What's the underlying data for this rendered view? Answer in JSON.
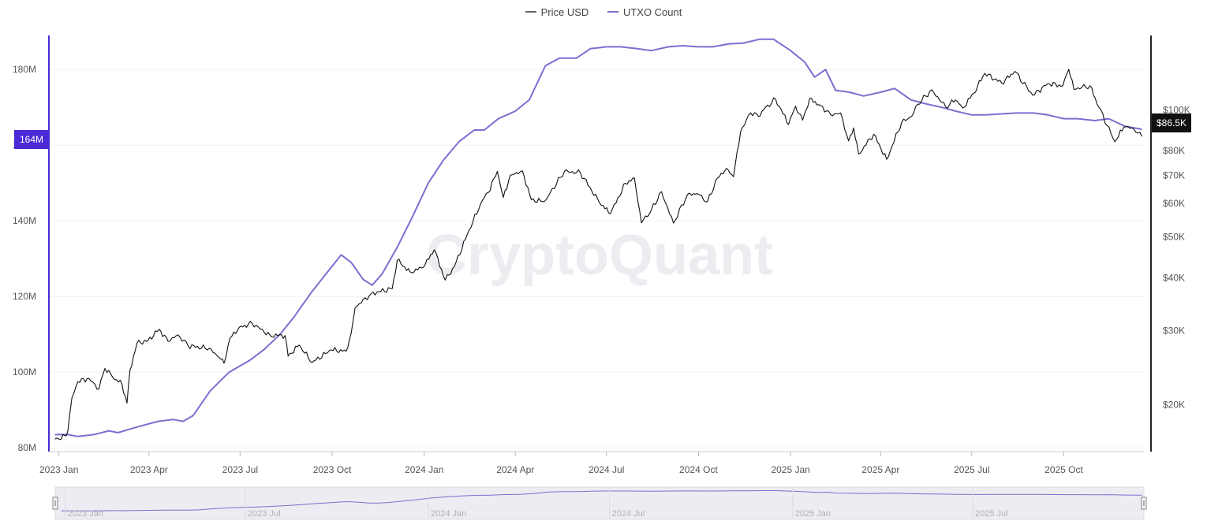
{
  "legend": [
    {
      "label": "Price USD",
      "color": "#666666"
    },
    {
      "label": "UTXO Count",
      "color": "#7b6fd0"
    }
  ],
  "watermark": "CryptoQuant",
  "crosshair": {
    "left_value": "164M",
    "right_value": "$86.5K"
  },
  "colors": {
    "price": "#111111",
    "utxo": "#7b6fd0",
    "accent": "#4b2ad6",
    "navigator": "#ececf2"
  },
  "chart_data": {
    "type": "line",
    "x_range": [
      "2022-12-22",
      "2025-12-20"
    ],
    "x_ticks": [
      {
        "date": "2023-01-01",
        "label": "2023 Jan"
      },
      {
        "date": "2023-04-01",
        "label": "2023 Apr"
      },
      {
        "date": "2023-07-01",
        "label": "2023 Jul"
      },
      {
        "date": "2023-10-01",
        "label": "2023 Oct"
      },
      {
        "date": "2024-01-01",
        "label": "2024 Jan"
      },
      {
        "date": "2024-04-01",
        "label": "2024 Apr"
      },
      {
        "date": "2024-07-01",
        "label": "2024 Jul"
      },
      {
        "date": "2024-10-01",
        "label": "2024 Oct"
      },
      {
        "date": "2025-01-01",
        "label": "2025 Jan"
      },
      {
        "date": "2025-04-01",
        "label": "2025 Apr"
      },
      {
        "date": "2025-07-01",
        "label": "2025 Jul"
      },
      {
        "date": "2025-10-01",
        "label": "2025 Oct"
      }
    ],
    "y_left": {
      "label": "",
      "ylim": [
        79,
        189
      ],
      "ticks": [
        {
          "v": 80,
          "label": "80M"
        },
        {
          "v": 100,
          "label": "100M"
        },
        {
          "v": 120,
          "label": "120M"
        },
        {
          "v": 140,
          "label": "140M"
        },
        {
          "v": 160,
          "label": "160M"
        },
        {
          "v": 180,
          "label": "180M"
        }
      ]
    },
    "y_right": {
      "label": "",
      "scale": "log",
      "ylim": [
        15500,
        150000
      ],
      "ticks": [
        {
          "v": 20000,
          "label": "$20K"
        },
        {
          "v": 30000,
          "label": "$30K"
        },
        {
          "v": 40000,
          "label": "$40K"
        },
        {
          "v": 50000,
          "label": "$50K"
        },
        {
          "v": 60000,
          "label": "$60K"
        },
        {
          "v": 70000,
          "label": "$70K"
        },
        {
          "v": 80000,
          "label": "$80K"
        },
        {
          "v": 100000,
          "label": "$100K"
        }
      ]
    },
    "grid": true,
    "series": [
      {
        "name": "UTXO Count",
        "axis": "left",
        "unit": "M",
        "points": [
          [
            "2022-12-28",
            83.5
          ],
          [
            "2023-01-10",
            83.5
          ],
          [
            "2023-01-20",
            83
          ],
          [
            "2023-02-05",
            83.5
          ],
          [
            "2023-02-20",
            84.5
          ],
          [
            "2023-03-01",
            84
          ],
          [
            "2023-03-20",
            85.5
          ],
          [
            "2023-04-10",
            87
          ],
          [
            "2023-04-25",
            87.5
          ],
          [
            "2023-05-05",
            87
          ],
          [
            "2023-05-15",
            88.5
          ],
          [
            "2023-06-01",
            95
          ],
          [
            "2023-06-20",
            100
          ],
          [
            "2023-07-10",
            103
          ],
          [
            "2023-07-25",
            106
          ],
          [
            "2023-08-10",
            110
          ],
          [
            "2023-08-25",
            115
          ],
          [
            "2023-09-10",
            121
          ],
          [
            "2023-09-25",
            126
          ],
          [
            "2023-10-10",
            131
          ],
          [
            "2023-10-20",
            129
          ],
          [
            "2023-11-01",
            124.5
          ],
          [
            "2023-11-10",
            123
          ],
          [
            "2023-11-20",
            126
          ],
          [
            "2023-12-05",
            133
          ],
          [
            "2023-12-20",
            141
          ],
          [
            "2024-01-05",
            150
          ],
          [
            "2024-01-20",
            156
          ],
          [
            "2024-02-05",
            161
          ],
          [
            "2024-02-20",
            164
          ],
          [
            "2024-03-01",
            164
          ],
          [
            "2024-03-15",
            167
          ],
          [
            "2024-04-01",
            169
          ],
          [
            "2024-04-15",
            172
          ],
          [
            "2024-05-01",
            181
          ],
          [
            "2024-05-15",
            183
          ],
          [
            "2024-06-01",
            183
          ],
          [
            "2024-06-15",
            185.5
          ],
          [
            "2024-07-01",
            186
          ],
          [
            "2024-07-15",
            186
          ],
          [
            "2024-08-01",
            185.5
          ],
          [
            "2024-08-15",
            185
          ],
          [
            "2024-09-01",
            186
          ],
          [
            "2024-09-15",
            186.3
          ],
          [
            "2024-10-01",
            186
          ],
          [
            "2024-10-15",
            186
          ],
          [
            "2024-11-01",
            186.8
          ],
          [
            "2024-11-15",
            187
          ],
          [
            "2024-12-01",
            188
          ],
          [
            "2024-12-15",
            188
          ],
          [
            "2025-01-01",
            185
          ],
          [
            "2025-01-15",
            182
          ],
          [
            "2025-01-25",
            178
          ],
          [
            "2025-02-05",
            180
          ],
          [
            "2025-02-15",
            174.5
          ],
          [
            "2025-03-01",
            174
          ],
          [
            "2025-03-15",
            173
          ],
          [
            "2025-04-01",
            174
          ],
          [
            "2025-04-15",
            175
          ],
          [
            "2025-05-01",
            172
          ],
          [
            "2025-05-15",
            171
          ],
          [
            "2025-06-01",
            170
          ],
          [
            "2025-06-15",
            169
          ],
          [
            "2025-07-01",
            168
          ],
          [
            "2025-07-15",
            168
          ],
          [
            "2025-08-01",
            168.3
          ],
          [
            "2025-08-15",
            168.5
          ],
          [
            "2025-09-01",
            168.5
          ],
          [
            "2025-09-15",
            168
          ],
          [
            "2025-10-01",
            167
          ],
          [
            "2025-10-15",
            167
          ],
          [
            "2025-11-01",
            166.5
          ],
          [
            "2025-11-15",
            167
          ],
          [
            "2025-12-01",
            165
          ],
          [
            "2025-12-18",
            164.2
          ]
        ]
      },
      {
        "name": "Price USD",
        "axis": "right",
        "unit": "USD",
        "points": [
          [
            "2022-12-28",
            16600
          ],
          [
            "2023-01-01",
            16600
          ],
          [
            "2023-01-07",
            16900
          ],
          [
            "2023-01-10",
            17400
          ],
          [
            "2023-01-14",
            20800
          ],
          [
            "2023-01-20",
            22700
          ],
          [
            "2023-01-31",
            23100
          ],
          [
            "2023-02-10",
            21800
          ],
          [
            "2023-02-16",
            24400
          ],
          [
            "2023-02-24",
            23200
          ],
          [
            "2023-03-05",
            22400
          ],
          [
            "2023-03-10",
            20200
          ],
          [
            "2023-03-13",
            24200
          ],
          [
            "2023-03-20",
            28000
          ],
          [
            "2023-03-31",
            28400
          ],
          [
            "2023-04-11",
            30200
          ],
          [
            "2023-04-20",
            28300
          ],
          [
            "2023-04-30",
            29300
          ],
          [
            "2023-05-10",
            27600
          ],
          [
            "2023-05-31",
            27200
          ],
          [
            "2023-06-10",
            25900
          ],
          [
            "2023-06-15",
            25100
          ],
          [
            "2023-06-21",
            28800
          ],
          [
            "2023-06-30",
            30500
          ],
          [
            "2023-07-13",
            31200
          ],
          [
            "2023-07-31",
            29200
          ],
          [
            "2023-08-15",
            29200
          ],
          [
            "2023-08-18",
            26100
          ],
          [
            "2023-08-29",
            27700
          ],
          [
            "2023-09-11",
            25200
          ],
          [
            "2023-09-30",
            27000
          ],
          [
            "2023-10-15",
            26800
          ],
          [
            "2023-10-20",
            29600
          ],
          [
            "2023-10-24",
            34000
          ],
          [
            "2023-11-09",
            36700
          ],
          [
            "2023-11-30",
            37700
          ],
          [
            "2023-12-05",
            44000
          ],
          [
            "2023-12-18",
            41300
          ],
          [
            "2023-12-31",
            42300
          ],
          [
            "2024-01-11",
            46600
          ],
          [
            "2024-01-22",
            39500
          ],
          [
            "2024-01-31",
            42500
          ],
          [
            "2024-02-15",
            52000
          ],
          [
            "2024-02-28",
            61000
          ],
          [
            "2024-03-05",
            63700
          ],
          [
            "2024-03-14",
            71500
          ],
          [
            "2024-03-20",
            62000
          ],
          [
            "2024-03-27",
            70000
          ],
          [
            "2024-04-08",
            71700
          ],
          [
            "2024-04-17",
            61200
          ],
          [
            "2024-04-30",
            60600
          ],
          [
            "2024-05-06",
            63700
          ],
          [
            "2024-05-20",
            71400
          ],
          [
            "2024-06-05",
            71000
          ],
          [
            "2024-06-24",
            60300
          ],
          [
            "2024-07-05",
            56700
          ],
          [
            "2024-07-20",
            67000
          ],
          [
            "2024-07-29",
            69000
          ],
          [
            "2024-08-05",
            54000
          ],
          [
            "2024-08-15",
            58000
          ],
          [
            "2024-08-25",
            64000
          ],
          [
            "2024-09-06",
            53900
          ],
          [
            "2024-09-20",
            63000
          ],
          [
            "2024-09-30",
            63300
          ],
          [
            "2024-10-10",
            60600
          ],
          [
            "2024-10-20",
            69000
          ],
          [
            "2024-10-29",
            72700
          ],
          [
            "2024-11-05",
            69400
          ],
          [
            "2024-11-12",
            88700
          ],
          [
            "2024-11-22",
            98400
          ],
          [
            "2024-11-30",
            96400
          ],
          [
            "2024-12-05",
            100000
          ],
          [
            "2024-12-17",
            106100
          ],
          [
            "2024-12-30",
            92300
          ],
          [
            "2025-01-06",
            102000
          ],
          [
            "2025-01-13",
            94500
          ],
          [
            "2025-01-20",
            106200
          ],
          [
            "2025-01-31",
            102400
          ],
          [
            "2025-02-10",
            97400
          ],
          [
            "2025-02-20",
            98300
          ],
          [
            "2025-02-28",
            84400
          ],
          [
            "2025-03-05",
            90600
          ],
          [
            "2025-03-10",
            78600
          ],
          [
            "2025-03-25",
            87500
          ],
          [
            "2025-04-07",
            76300
          ],
          [
            "2025-04-22",
            93400
          ],
          [
            "2025-05-02",
            96500
          ],
          [
            "2025-05-08",
            103000
          ],
          [
            "2025-05-22",
            111500
          ],
          [
            "2025-06-05",
            101500
          ],
          [
            "2025-06-15",
            105500
          ],
          [
            "2025-06-22",
            101000
          ],
          [
            "2025-07-03",
            109500
          ],
          [
            "2025-07-14",
            122000
          ],
          [
            "2025-07-31",
            115700
          ],
          [
            "2025-08-13",
            123300
          ],
          [
            "2025-08-31",
            108200
          ],
          [
            "2025-09-15",
            115400
          ],
          [
            "2025-09-30",
            114000
          ],
          [
            "2025-10-06",
            124700
          ],
          [
            "2025-10-11",
            112000
          ],
          [
            "2025-10-27",
            114000
          ],
          [
            "2025-11-05",
            101500
          ],
          [
            "2025-11-21",
            84000
          ],
          [
            "2025-11-30",
            91000
          ],
          [
            "2025-12-08",
            90600
          ],
          [
            "2025-12-18",
            86500
          ]
        ]
      }
    ]
  },
  "navigator": {
    "x_ticks": [
      {
        "date": "2023-01-01",
        "label": "2023 Jan"
      },
      {
        "date": "2023-07-01",
        "label": "2023 Jul"
      },
      {
        "date": "2024-01-01",
        "label": "2024 Jan"
      },
      {
        "date": "2024-07-01",
        "label": "2024 Jul"
      },
      {
        "date": "2025-01-01",
        "label": "2025 Jan"
      },
      {
        "date": "2025-07-01",
        "label": "2025 Jul"
      }
    ]
  }
}
